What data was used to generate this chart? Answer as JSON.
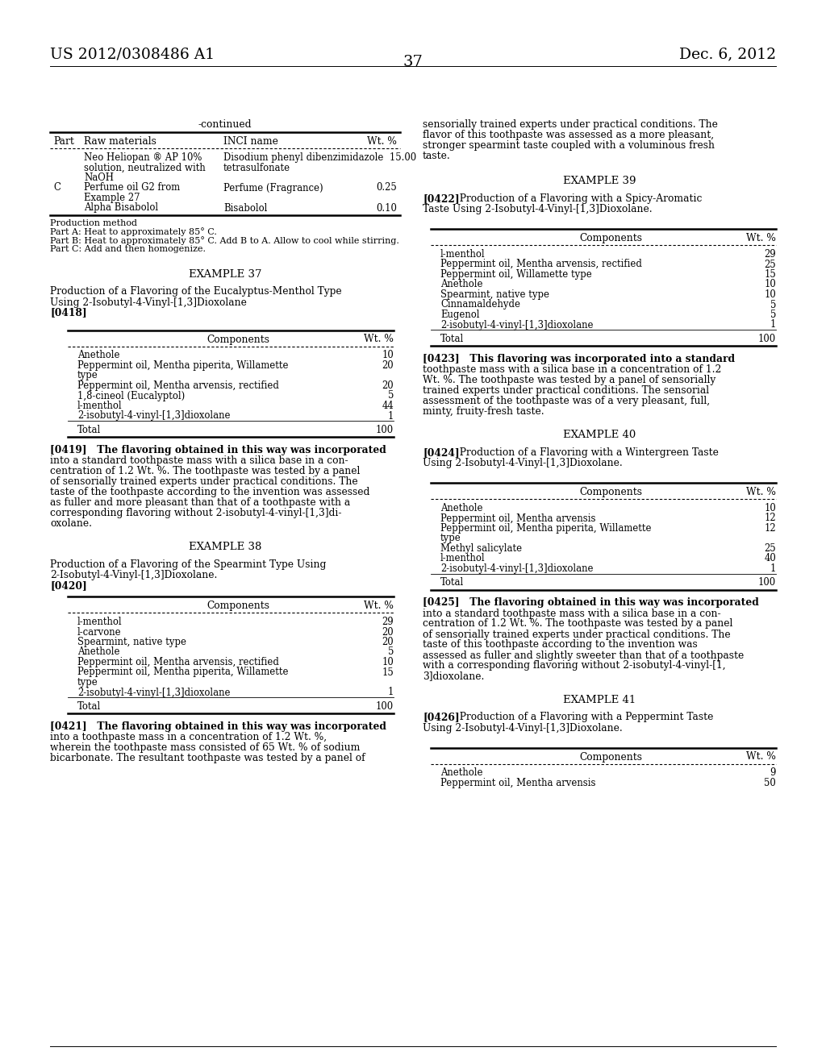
{
  "bg_color": "#ffffff",
  "header_left": "US 2012/0308486 A1",
  "header_right": "Dec. 6, 2012",
  "page_number": "37",
  "continued_label": "-continued",
  "cont_table_footnotes": [
    "Production method",
    "Part A: Heat to approximately 85° C.",
    "Part B: Heat to approximately 85° C. Add B to A. Allow to cool while stirring.",
    "Part C: Add and then homogenize."
  ],
  "example37_title": "EXAMPLE 37",
  "example37_subtitle1": "Production of a Flavoring of the Eucalyptus-Menthol Type",
  "example37_subtitle2": "Using 2-Isobutyl-4-Vinyl-[1,3]Dioxolane",
  "example37_para": "[0418]",
  "example37_rows": [
    [
      "Anethole",
      "10"
    ],
    [
      "Peppermint oil, Mentha piperita, Willamette",
      "20"
    ],
    [
      "type",
      ""
    ],
    [
      "Peppermint oil, Mentha arvensis, rectified",
      "20"
    ],
    [
      "1,8-cineol (Eucalyptol)",
      "5"
    ],
    [
      "l-menthol",
      "44"
    ],
    [
      "2-isobutyl-4-vinyl-[1,3]dioxolane",
      "1"
    ]
  ],
  "example37_text_lines": [
    "[0419]   The flavoring obtained in this way was incorporated",
    "into a standard toothpaste mass with a silica base in a con-",
    "centration of 1.2 Wt. %. The toothpaste was tested by a panel",
    "of sensorially trained experts under practical conditions. The",
    "taste of the toothpaste according to the invention was assessed",
    "as fuller and more pleasant than that of a toothpaste with a",
    "corresponding flavoring without 2-isobutyl-4-vinyl-[1,3]di-",
    "oxolane."
  ],
  "example38_title": "EXAMPLE 38",
  "example38_subtitle_lines": [
    "Production of a Flavoring of the Spearmint Type Using",
    "2-Isobutyl-4-Vinyl-[1,3]Dioxolane."
  ],
  "example38_para": "[0420]",
  "example38_rows": [
    [
      "l-menthol",
      "29"
    ],
    [
      "l-carvone",
      "20"
    ],
    [
      "Spearmint, native type",
      "20"
    ],
    [
      "Anethole",
      "5"
    ],
    [
      "Peppermint oil, Mentha arvensis, rectified",
      "10"
    ],
    [
      "Peppermint oil, Mentha piperita, Willamette",
      "15"
    ],
    [
      "type",
      ""
    ],
    [
      "2-isobutyl-4-vinyl-[1,3]dioxolane",
      "1"
    ]
  ],
  "example38_text_lines": [
    "[0421]   The flavoring obtained in this way was incorporated",
    "into a toothpaste mass in a concentration of 1.2 Wt. %,",
    "wherein the toothpaste mass consisted of 65 Wt. % of sodium",
    "bicarbonate. The resultant toothpaste was tested by a panel of"
  ],
  "right_top_lines": [
    "sensorially trained experts under practical conditions. The",
    "flavor of this toothpaste was assessed as a more pleasant,",
    "stronger spearmint taste coupled with a voluminous fresh",
    "taste."
  ],
  "example39_title": "EXAMPLE 39",
  "example39_subtitle_lines": [
    "[0422]   Production of a Flavoring with a Spicy-Aromatic",
    "Taste Using 2-Isobutyl-4-Vinyl-[1,3]Dioxolane."
  ],
  "example39_rows": [
    [
      "l-menthol",
      "29"
    ],
    [
      "Peppermint oil, Mentha arvensis, rectified",
      "25"
    ],
    [
      "Peppermint oil, Willamette type",
      "15"
    ],
    [
      "Anethole",
      "10"
    ],
    [
      "Spearmint, native type",
      "10"
    ],
    [
      "Cinnamaldehyde",
      "5"
    ],
    [
      "Eugenol",
      "5"
    ],
    [
      "2-isobutyl-4-vinyl-[1,3]dioxolane",
      "1"
    ]
  ],
  "example39_text_lines": [
    "[0423]   This flavoring was incorporated into a standard",
    "toothpaste mass with a silica base in a concentration of 1.2",
    "Wt. %. The toothpaste was tested by a panel of sensorially",
    "trained experts under practical conditions. The sensorial",
    "assessment of the toothpaste was of a very pleasant, full,",
    "minty, fruity-fresh taste."
  ],
  "example40_title": "EXAMPLE 40",
  "example40_subtitle_lines": [
    "[0424]   Production of a Flavoring with a Wintergreen Taste",
    "Using 2-Isobutyl-4-Vinyl-[1,3]Dioxolane."
  ],
  "example40_rows": [
    [
      "Anethole",
      "10"
    ],
    [
      "Peppermint oil, Mentha arvensis",
      "12"
    ],
    [
      "Peppermint oil, Mentha piperita, Willamette",
      "12"
    ],
    [
      "type",
      ""
    ],
    [
      "Methyl salicylate",
      "25"
    ],
    [
      "l-menthol",
      "40"
    ],
    [
      "2-isobutyl-4-vinyl-[1,3]dioxolane",
      "1"
    ]
  ],
  "example40_text_lines": [
    "[0425]   The flavoring obtained in this way was incorporated",
    "into a standard toothpaste mass with a silica base in a con-",
    "centration of 1.2 Wt. %. The toothpaste was tested by a panel",
    "of sensorially trained experts under practical conditions. The",
    "taste of this toothpaste according to the invention was",
    "assessed as fuller and slightly sweeter than that of a toothpaste",
    "with a corresponding flavoring without 2-isobutyl-4-vinyl-[1,",
    "3]dioxolane."
  ],
  "example41_title": "EXAMPLE 41",
  "example41_subtitle_lines": [
    "[0426]   Production of a Flavoring with a Peppermint Taste",
    "Using 2-Isobutyl-4-Vinyl-[1,3]Dioxolane."
  ],
  "example41_rows": [
    [
      "Anethole",
      "9"
    ],
    [
      "Peppermint oil, Mentha arvensis",
      "50"
    ]
  ]
}
